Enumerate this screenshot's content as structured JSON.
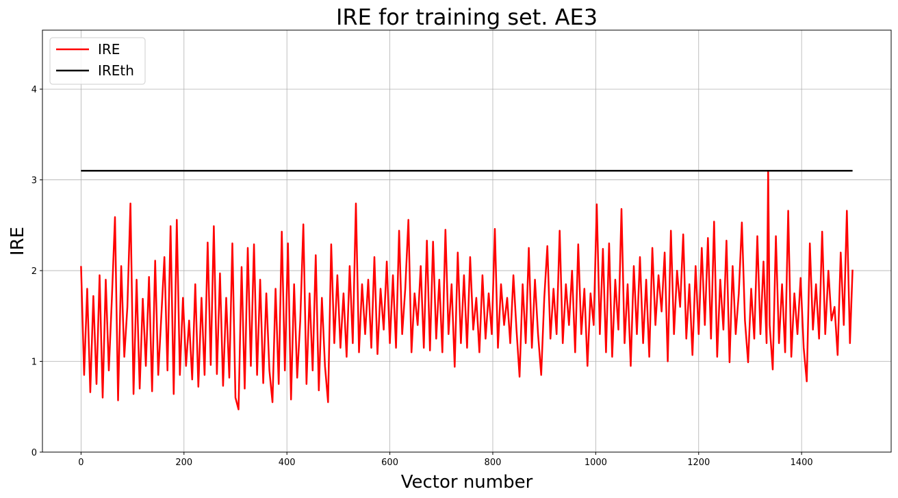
{
  "chart_data": {
    "type": "line",
    "title": "IRE for training set. AE3",
    "xlabel": "Vector number",
    "ylabel": "IRE",
    "xlim": [
      -75,
      1574
    ],
    "ylim": [
      0,
      4.65
    ],
    "xticks": [
      0,
      200,
      400,
      600,
      800,
      1000,
      1200,
      1400
    ],
    "yticks": [
      0,
      1,
      2,
      3,
      4
    ],
    "grid": true,
    "legend_position": "top-left",
    "series": [
      {
        "name": "IRE",
        "color": "#ff0000",
        "points": [
          [
            0,
            2.05
          ],
          [
            6,
            0.85
          ],
          [
            12,
            1.8
          ],
          [
            18,
            0.66
          ],
          [
            24,
            1.72
          ],
          [
            30,
            0.75
          ],
          [
            36,
            1.95
          ],
          [
            42,
            0.6
          ],
          [
            48,
            1.9
          ],
          [
            54,
            0.9
          ],
          [
            60,
            1.7
          ],
          [
            66,
            2.59
          ],
          [
            72,
            0.57
          ],
          [
            78,
            2.05
          ],
          [
            84,
            1.05
          ],
          [
            90,
            1.6
          ],
          [
            96,
            2.74
          ],
          [
            102,
            0.64
          ],
          [
            108,
            1.9
          ],
          [
            114,
            0.7
          ],
          [
            120,
            1.69
          ],
          [
            126,
            0.95
          ],
          [
            132,
            1.93
          ],
          [
            138,
            0.67
          ],
          [
            144,
            2.11
          ],
          [
            150,
            0.85
          ],
          [
            156,
            1.5
          ],
          [
            162,
            2.15
          ],
          [
            168,
            0.9
          ],
          [
            174,
            2.49
          ],
          [
            180,
            0.64
          ],
          [
            186,
            2.56
          ],
          [
            192,
            0.85
          ],
          [
            198,
            1.7
          ],
          [
            204,
            0.95
          ],
          [
            210,
            1.45
          ],
          [
            216,
            0.8
          ],
          [
            222,
            1.85
          ],
          [
            228,
            0.72
          ],
          [
            234,
            1.7
          ],
          [
            240,
            0.85
          ],
          [
            246,
            2.31
          ],
          [
            252,
            0.96
          ],
          [
            258,
            2.49
          ],
          [
            264,
            0.86
          ],
          [
            270,
            1.97
          ],
          [
            276,
            0.73
          ],
          [
            282,
            1.7
          ],
          [
            288,
            0.82
          ],
          [
            294,
            2.3
          ],
          [
            300,
            0.6
          ],
          [
            306,
            0.47
          ],
          [
            312,
            2.04
          ],
          [
            318,
            0.7
          ],
          [
            324,
            2.25
          ],
          [
            330,
            0.95
          ],
          [
            336,
            2.29
          ],
          [
            342,
            0.85
          ],
          [
            348,
            1.9
          ],
          [
            354,
            0.76
          ],
          [
            360,
            1.75
          ],
          [
            366,
            0.9
          ],
          [
            372,
            0.55
          ],
          [
            378,
            1.8
          ],
          [
            384,
            0.75
          ],
          [
            390,
            2.43
          ],
          [
            396,
            0.9
          ],
          [
            402,
            2.3
          ],
          [
            408,
            0.58
          ],
          [
            414,
            1.85
          ],
          [
            420,
            0.82
          ],
          [
            426,
            1.45
          ],
          [
            432,
            2.51
          ],
          [
            438,
            0.75
          ],
          [
            444,
            1.75
          ],
          [
            450,
            0.9
          ],
          [
            456,
            2.17
          ],
          [
            462,
            0.68
          ],
          [
            468,
            1.7
          ],
          [
            474,
            0.95
          ],
          [
            480,
            0.55
          ],
          [
            486,
            2.29
          ],
          [
            492,
            1.2
          ],
          [
            498,
            1.95
          ],
          [
            504,
            1.15
          ],
          [
            510,
            1.75
          ],
          [
            516,
            1.05
          ],
          [
            522,
            2.05
          ],
          [
            528,
            1.2
          ],
          [
            534,
            2.74
          ],
          [
            540,
            1.1
          ],
          [
            546,
            1.85
          ],
          [
            552,
            1.3
          ],
          [
            558,
            1.9
          ],
          [
            564,
            1.15
          ],
          [
            570,
            2.15
          ],
          [
            576,
            1.08
          ],
          [
            582,
            1.8
          ],
          [
            588,
            1.35
          ],
          [
            594,
            2.1
          ],
          [
            600,
            1.2
          ],
          [
            606,
            1.95
          ],
          [
            612,
            1.15
          ],
          [
            618,
            2.44
          ],
          [
            624,
            1.3
          ],
          [
            630,
            1.8
          ],
          [
            636,
            2.56
          ],
          [
            642,
            1.1
          ],
          [
            648,
            1.75
          ],
          [
            654,
            1.4
          ],
          [
            660,
            2.05
          ],
          [
            666,
            1.15
          ],
          [
            672,
            2.33
          ],
          [
            678,
            1.12
          ],
          [
            684,
            2.32
          ],
          [
            690,
            1.25
          ],
          [
            696,
            1.9
          ],
          [
            702,
            1.1
          ],
          [
            708,
            2.45
          ],
          [
            714,
            1.3
          ],
          [
            720,
            1.85
          ],
          [
            726,
            0.94
          ],
          [
            732,
            2.2
          ],
          [
            738,
            1.2
          ],
          [
            744,
            1.95
          ],
          [
            750,
            1.15
          ],
          [
            756,
            2.15
          ],
          [
            762,
            1.35
          ],
          [
            768,
            1.7
          ],
          [
            774,
            1.1
          ],
          [
            780,
            1.95
          ],
          [
            786,
            1.25
          ],
          [
            792,
            1.75
          ],
          [
            798,
            1.3
          ],
          [
            804,
            2.46
          ],
          [
            810,
            1.15
          ],
          [
            816,
            1.85
          ],
          [
            822,
            1.4
          ],
          [
            828,
            1.7
          ],
          [
            834,
            1.2
          ],
          [
            840,
            1.95
          ],
          [
            846,
            1.35
          ],
          [
            852,
            0.83
          ],
          [
            858,
            1.85
          ],
          [
            864,
            1.2
          ],
          [
            870,
            2.25
          ],
          [
            876,
            1.15
          ],
          [
            882,
            1.9
          ],
          [
            888,
            1.3
          ],
          [
            894,
            0.85
          ],
          [
            900,
            1.7
          ],
          [
            906,
            2.27
          ],
          [
            912,
            1.25
          ],
          [
            918,
            1.8
          ],
          [
            924,
            1.3
          ],
          [
            930,
            2.44
          ],
          [
            936,
            1.2
          ],
          [
            942,
            1.85
          ],
          [
            948,
            1.4
          ],
          [
            954,
            2.0
          ],
          [
            960,
            1.1
          ],
          [
            966,
            2.29
          ],
          [
            972,
            1.3
          ],
          [
            978,
            1.8
          ],
          [
            984,
            0.95
          ],
          [
            990,
            1.75
          ],
          [
            996,
            1.4
          ],
          [
            1002,
            2.73
          ],
          [
            1008,
            1.3
          ],
          [
            1014,
            2.24
          ],
          [
            1020,
            1.1
          ],
          [
            1026,
            2.3
          ],
          [
            1032,
            1.05
          ],
          [
            1038,
            1.9
          ],
          [
            1044,
            1.35
          ],
          [
            1050,
            2.68
          ],
          [
            1056,
            1.2
          ],
          [
            1062,
            1.85
          ],
          [
            1068,
            0.95
          ],
          [
            1074,
            2.05
          ],
          [
            1080,
            1.3
          ],
          [
            1086,
            2.15
          ],
          [
            1092,
            1.2
          ],
          [
            1098,
            1.9
          ],
          [
            1104,
            1.05
          ],
          [
            1110,
            2.25
          ],
          [
            1116,
            1.4
          ],
          [
            1122,
            1.95
          ],
          [
            1128,
            1.55
          ],
          [
            1134,
            2.2
          ],
          [
            1140,
            1.0
          ],
          [
            1146,
            2.44
          ],
          [
            1152,
            1.3
          ],
          [
            1158,
            2.0
          ],
          [
            1164,
            1.6
          ],
          [
            1170,
            2.4
          ],
          [
            1176,
            1.25
          ],
          [
            1182,
            1.85
          ],
          [
            1188,
            1.07
          ],
          [
            1194,
            2.05
          ],
          [
            1200,
            1.3
          ],
          [
            1206,
            2.25
          ],
          [
            1212,
            1.4
          ],
          [
            1218,
            2.36
          ],
          [
            1224,
            1.25
          ],
          [
            1230,
            2.54
          ],
          [
            1236,
            1.05
          ],
          [
            1242,
            1.9
          ],
          [
            1248,
            1.35
          ],
          [
            1254,
            2.33
          ],
          [
            1260,
            0.99
          ],
          [
            1266,
            2.05
          ],
          [
            1272,
            1.3
          ],
          [
            1278,
            1.75
          ],
          [
            1284,
            2.53
          ],
          [
            1290,
            1.45
          ],
          [
            1296,
            0.99
          ],
          [
            1302,
            1.8
          ],
          [
            1308,
            1.25
          ],
          [
            1314,
            2.38
          ],
          [
            1320,
            1.3
          ],
          [
            1326,
            2.1
          ],
          [
            1332,
            1.2
          ],
          [
            1335,
            3.1
          ],
          [
            1338,
            1.4
          ],
          [
            1344,
            0.91
          ],
          [
            1350,
            2.38
          ],
          [
            1356,
            1.2
          ],
          [
            1362,
            1.85
          ],
          [
            1368,
            1.1
          ],
          [
            1374,
            2.66
          ],
          [
            1380,
            1.05
          ],
          [
            1386,
            1.75
          ],
          [
            1392,
            1.3
          ],
          [
            1398,
            1.92
          ],
          [
            1404,
            1.15
          ],
          [
            1410,
            0.78
          ],
          [
            1416,
            2.3
          ],
          [
            1422,
            1.35
          ],
          [
            1428,
            1.85
          ],
          [
            1434,
            1.25
          ],
          [
            1440,
            2.43
          ],
          [
            1446,
            1.3
          ],
          [
            1452,
            2.0
          ],
          [
            1458,
            1.45
          ],
          [
            1464,
            1.6
          ],
          [
            1470,
            1.07
          ],
          [
            1476,
            2.2
          ],
          [
            1482,
            1.4
          ],
          [
            1488,
            2.66
          ],
          [
            1494,
            1.2
          ],
          [
            1499,
            2.01
          ]
        ]
      },
      {
        "name": "IREth",
        "color": "#000000",
        "points": [
          [
            0,
            3.1
          ],
          [
            1499,
            3.1
          ]
        ]
      }
    ]
  }
}
